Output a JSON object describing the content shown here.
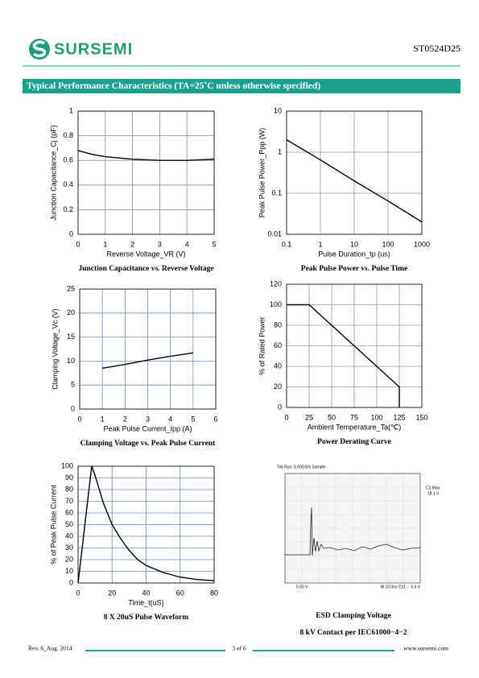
{
  "header": {
    "logo": "SURSEMI",
    "part": "ST0524D25"
  },
  "section_title": "Typical Performance Characteristics (TA=25˚C unless otherwise specified)",
  "chart_data": [
    {
      "type": "line",
      "title": "Junction Capacitance vs. Reverse Voltage",
      "xlabel": "Reverse Voltage_VR (V)",
      "ylabel": "Junction Capacitance_Cj (pF)",
      "x": [
        0,
        0.5,
        1,
        1.5,
        2,
        2.5,
        3,
        3.5,
        4,
        4.5,
        5
      ],
      "values": [
        0.68,
        0.65,
        0.63,
        0.62,
        0.61,
        0.605,
        0.6,
        0.6,
        0.6,
        0.605,
        0.61
      ],
      "color": "#000000",
      "xlim": [
        0,
        5
      ],
      "ylim": [
        0,
        1
      ],
      "xticks": [
        0,
        1,
        2,
        3,
        4,
        5
      ],
      "yticks": [
        0,
        0.2,
        0.4,
        0.6,
        0.8,
        1
      ],
      "grid": true,
      "grid_color": "#8a8a8a"
    },
    {
      "type": "line",
      "title": "Peak Pulse Power vs. Pulse Time",
      "xlabel": "Pulse Duration_tp (us)",
      "ylabel": "Peak Pulse Power_Ppp (W)",
      "x": [
        0.1,
        1,
        10,
        100,
        1000
      ],
      "values": [
        2,
        0.65,
        0.2,
        0.065,
        0.02
      ],
      "color": "#000000",
      "xlim": [
        0.1,
        1000
      ],
      "ylim": [
        0.01,
        10
      ],
      "xticks": [
        0.1,
        1,
        10,
        100,
        1000
      ],
      "yticks": [
        0.01,
        0.1,
        1,
        10
      ],
      "xlog": true,
      "ylog": true,
      "grid": true,
      "grid_color": "#9a9a9a"
    },
    {
      "type": "line",
      "title": "Clamping Voltage vs. Peak Pulse Current",
      "xlabel": "Peak Pulse Current_Ipp (A)",
      "ylabel": "Clamping Voltage_Vc (V)",
      "x": [
        1,
        2,
        3,
        4,
        5
      ],
      "values": [
        8.5,
        9.3,
        10.2,
        11,
        11.7
      ],
      "color": "#000000",
      "xlim": [
        0,
        6
      ],
      "ylim": [
        0,
        25
      ],
      "xticks": [
        0,
        1,
        2,
        3,
        4,
        5,
        6
      ],
      "yticks": [
        0,
        5,
        10,
        15,
        20,
        25
      ],
      "grid": true,
      "grid_color": "#6b8cc4"
    },
    {
      "type": "line",
      "title": "Power Derating Curve",
      "xlabel": "Ambient  Temperature_Ta(℃)",
      "ylabel": "% of Rated Power",
      "x": [
        0,
        25,
        125,
        125
      ],
      "values": [
        100,
        100,
        20,
        0
      ],
      "color": "#000000",
      "xlim": [
        0,
        150
      ],
      "ylim": [
        0,
        120
      ],
      "xticks": [
        0,
        25,
        50,
        75,
        100,
        125,
        150
      ],
      "yticks": [
        0,
        20,
        40,
        60,
        80,
        100,
        120
      ],
      "grid": true,
      "grid_color": "#9a9a9a"
    },
    {
      "type": "line",
      "title": "8 X 20uS Pulse Waveform",
      "xlabel": "Time_t(uS)",
      "ylabel": "% of Peak Pulse Current",
      "x": [
        0,
        8,
        10,
        15,
        20,
        25,
        30,
        35,
        40,
        50,
        60,
        70,
        80
      ],
      "values": [
        0,
        100,
        92,
        68,
        50,
        38,
        28,
        20,
        15,
        9,
        5,
        3,
        2
      ],
      "color": "#000000",
      "xlim": [
        0,
        80
      ],
      "ylim": [
        0,
        100
      ],
      "xticks": [
        0,
        20,
        40,
        60,
        80
      ],
      "yticks": [
        0,
        10,
        20,
        30,
        40,
        50,
        60,
        70,
        80,
        90,
        100
      ],
      "grid": true,
      "grid_color": "#6b8cc4"
    }
  ],
  "esd_scope": {
    "status": "Tek Run: 5.00GS/s   Sample",
    "readout_label": "C1 Max",
    "readout_value": "18.1 V",
    "scale": "5.00 V",
    "timebase": "M 10.0ns  Ch1 ⟋  5.6 V",
    "title": "ESD Clamping Voltage",
    "subtitle": "8 kV Contact per IEC61000−4−2"
  },
  "footer": {
    "revision": "Rev. 6_Aug. 2014",
    "page": "3 of 6",
    "website": "www.sursemi.com"
  }
}
